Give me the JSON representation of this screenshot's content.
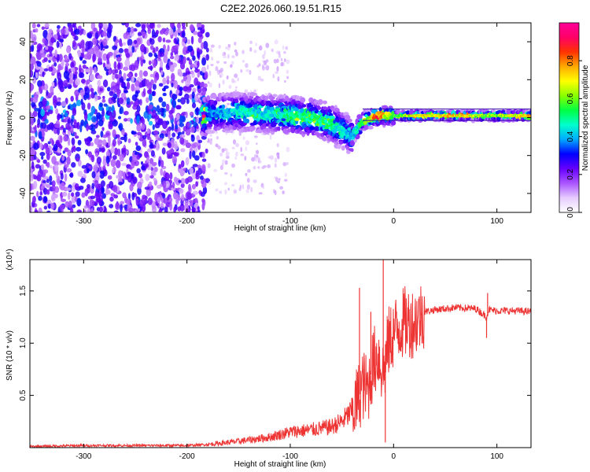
{
  "title": "C2E2.2026.060.19.51.R15",
  "chart_data": [
    {
      "type": "heatmap",
      "name": "spectrogram",
      "xlabel": "Height of straight line (km)",
      "ylabel": "Frequency (Hz)",
      "xlim": [
        -352,
        133
      ],
      "ylim": [
        -50,
        50
      ],
      "xticks": [
        -300,
        -200,
        -100,
        0,
        100
      ],
      "yticks": [
        -40,
        -20,
        0,
        20,
        40
      ],
      "colorbar": {
        "label": "Normalized spectral amplitude",
        "range": [
          0,
          1
        ],
        "ticks": [
          0.0,
          0.2,
          0.4,
          0.6,
          0.8
        ],
        "tick_labels": [
          "0.0",
          "0.2",
          "0.4",
          "0.6",
          "0.8"
        ],
        "colors": [
          "#ffffff",
          "#e6ccff",
          "#aa55ff",
          "#6600ff",
          "#0000ff",
          "#00aaff",
          "#00ffcc",
          "#00ff44",
          "#88ff00",
          "#ffff00",
          "#ffaa00",
          "#ff3300",
          "#ff0066",
          "#ff0099"
        ]
      },
      "noise_region": {
        "x_range": [
          -352,
          -180
        ],
        "freq_range": [
          -50,
          50
        ],
        "amplitude": 0.15
      },
      "ridge": [
        {
          "x": -180,
          "f": 2,
          "a": 0.35
        },
        {
          "x": -150,
          "f": 3,
          "a": 0.45
        },
        {
          "x": -120,
          "f": 2,
          "a": 0.45
        },
        {
          "x": -100,
          "f": 1,
          "a": 0.5
        },
        {
          "x": -80,
          "f": 0,
          "a": 0.55
        },
        {
          "x": -60,
          "f": -3,
          "a": 0.5
        },
        {
          "x": -40,
          "f": -10,
          "a": 0.4
        },
        {
          "x": -30,
          "f": -2,
          "a": 0.55
        },
        {
          "x": -15,
          "f": 1,
          "a": 0.85
        },
        {
          "x": 0,
          "f": 1,
          "a": 0.55
        },
        {
          "x": 20,
          "f": 1,
          "a": 0.7
        },
        {
          "x": 60,
          "f": 1,
          "a": 0.75
        },
        {
          "x": 90,
          "f": 1,
          "a": 0.6
        },
        {
          "x": 133,
          "f": 1,
          "a": 0.75
        }
      ]
    },
    {
      "type": "line",
      "name": "snr",
      "xlabel": "Height of straight line (km)",
      "ylabel": "SNR (10 * v/v)",
      "multiplier": "(x10⁴)",
      "xlim": [
        -352,
        133
      ],
      "ylim": [
        0,
        1.8
      ],
      "xticks": [
        -300,
        -200,
        -100,
        0,
        100
      ],
      "yticks": [
        0.5,
        1.0,
        1.5
      ],
      "ytick_labels": [
        "0.5",
        "1.0",
        "1.5"
      ],
      "color": "#ee3333",
      "series": [
        {
          "name": "SNR",
          "x": [
            -352,
            -300,
            -250,
            -200,
            -180,
            -150,
            -120,
            -100,
            -80,
            -60,
            -50,
            -40,
            -35,
            -30,
            -25,
            -20,
            -15,
            -10,
            -5,
            0,
            10,
            20,
            30,
            40,
            60,
            80,
            90,
            92,
            100,
            120,
            133
          ],
          "values": [
            0.01,
            0.02,
            0.02,
            0.02,
            0.03,
            0.06,
            0.1,
            0.15,
            0.17,
            0.2,
            0.25,
            0.35,
            0.45,
            0.6,
            0.55,
            0.8,
            0.9,
            0.7,
            1.0,
            1.1,
            1.2,
            1.2,
            1.3,
            1.32,
            1.34,
            1.33,
            1.25,
            1.32,
            1.31,
            1.31,
            1.3
          ]
        }
      ],
      "spikes": [
        {
          "x": -33,
          "value": 1.53
        },
        {
          "x": -22,
          "value": 1.3
        },
        {
          "x": -10,
          "value": 1.8
        },
        {
          "x": -8,
          "value": 0.05
        },
        {
          "x": 90,
          "value": 1.05
        },
        {
          "x": 91,
          "value": 1.48
        }
      ]
    }
  ]
}
